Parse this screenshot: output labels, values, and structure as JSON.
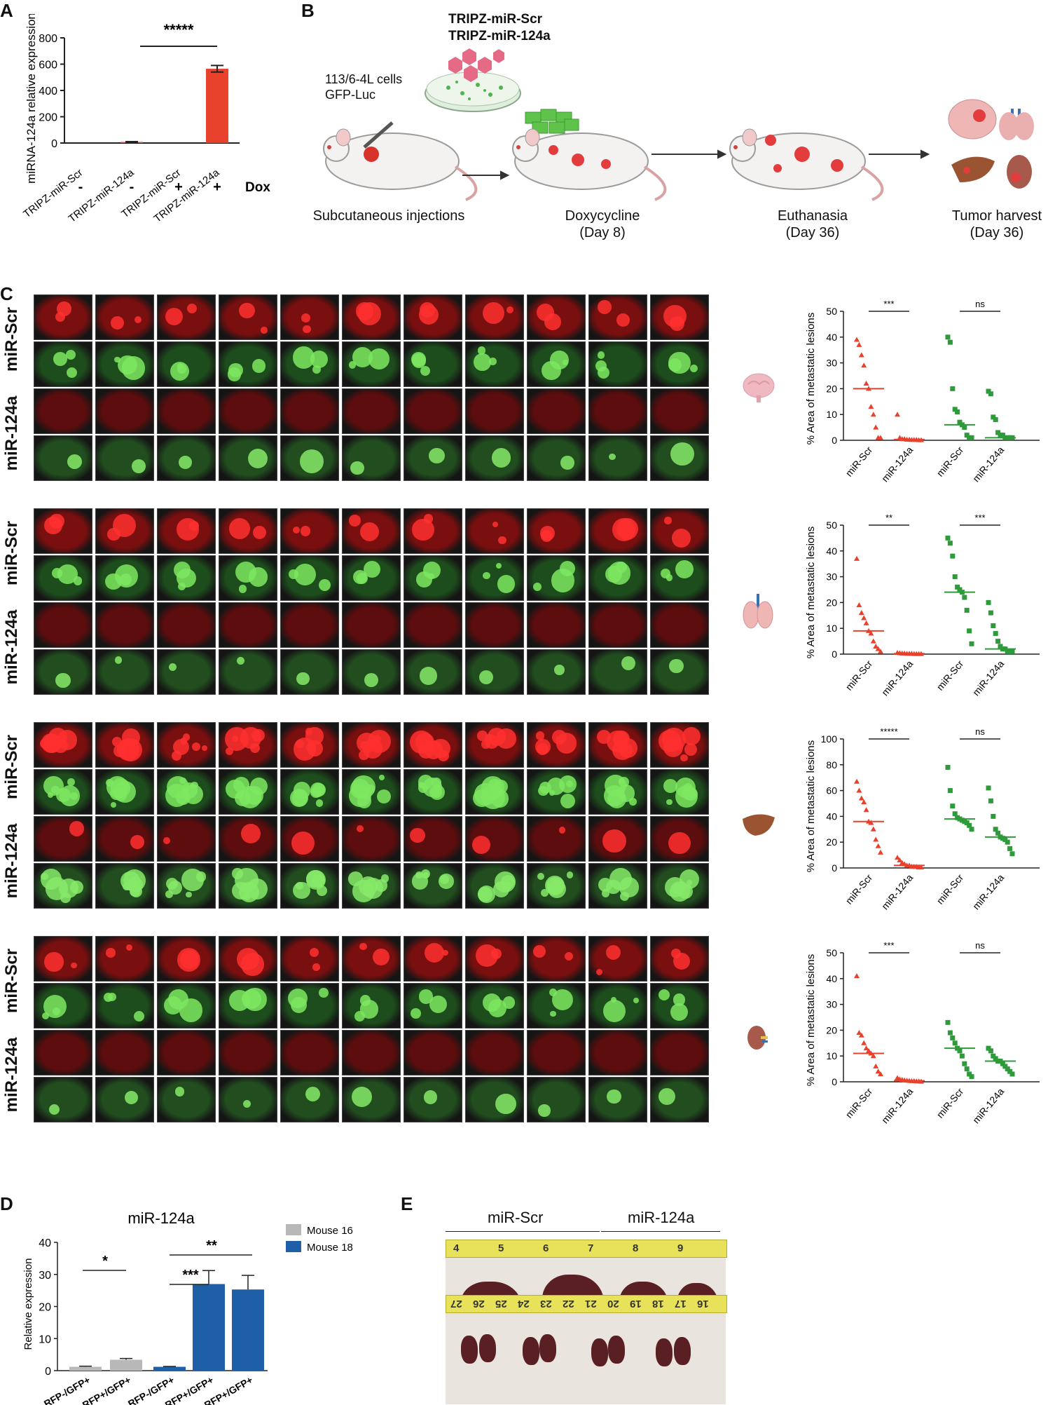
{
  "figure": {
    "panel_letters": [
      "A",
      "B",
      "C",
      "D",
      "E"
    ]
  },
  "panel_a": {
    "ylabel": "miRNA-124a relative expression",
    "significance": "*****",
    "dox_label": "Dox",
    "dox_values": [
      "-",
      "-",
      "+",
      "+"
    ],
    "colors": {
      "bar": "#e8412c"
    }
  },
  "panel_b": {
    "constructs": [
      "TRIPZ-miR-Scr",
      "TRIPZ-miR-124a"
    ],
    "cells": [
      "113/6-4L cells",
      "GFP-Luc"
    ],
    "steps": [
      {
        "label": "Subcutaneous injections",
        "sub": ""
      },
      {
        "label": "Doxycycline",
        "sub": "(Day 8)"
      },
      {
        "label": "Euthanasia",
        "sub": "(Day 36)"
      },
      {
        "label": "Tumor harvest",
        "sub": "(Day 36)"
      }
    ]
  },
  "panel_c": {
    "row_labels": [
      "miR-Scr",
      "miR-124a"
    ],
    "organs": [
      "brain-icon",
      "lung-icon",
      "liver-icon",
      "kidney-icon"
    ],
    "ylabel": "% Area of metastatic lesions",
    "x_categories": [
      "miR-Scr",
      "miR-124a",
      "miR-Scr",
      "miR-124a"
    ],
    "colors": {
      "red": "#e8412c",
      "green": "#2e9b3a"
    }
  },
  "panel_d": {
    "title": "miR-124a",
    "ylabel": "Relative expression",
    "legend": [
      "Mouse 16",
      "Mouse 18"
    ],
    "sig": [
      "*",
      "***",
      "**"
    ],
    "colors": {
      "mouse16": "#b8b8b8",
      "mouse18": "#1f5fa8"
    }
  },
  "panel_e": {
    "groups": [
      "miR-Scr",
      "miR-124a"
    ],
    "ruler_top_marks": [
      "4",
      "5",
      "6",
      "7",
      "8",
      "9"
    ],
    "ruler_bottom_marks": [
      "27",
      "26",
      "25",
      "24",
      "23",
      "22",
      "21",
      "20",
      "19",
      "18",
      "17",
      "16"
    ]
  },
  "chart_data": [
    {
      "type": "bar",
      "id": "A",
      "categories": [
        "TRIPZ-miR-Scr",
        "TRIPZ-miR-124a",
        "TRIPZ-miR-Scr",
        "TRIPZ-miR-124a"
      ],
      "values": [
        0,
        8,
        0,
        565
      ],
      "errors": [
        0,
        3,
        0,
        25
      ],
      "ylim": [
        0,
        800
      ],
      "yticks": [
        0,
        200,
        400,
        600,
        800
      ]
    },
    {
      "type": "scatter",
      "id": "C-brain",
      "ylim": [
        0,
        50
      ],
      "yticks": [
        0,
        10,
        20,
        30,
        40,
        50
      ],
      "significance": [
        "***",
        "ns"
      ],
      "groups": [
        {
          "values": [
            39,
            37,
            33,
            29,
            22,
            20,
            13,
            10,
            5,
            1,
            1
          ],
          "median": 20
        },
        {
          "values": [
            10,
            1,
            0.5,
            0.5,
            0.3,
            0.3,
            0.2,
            0.2,
            0.2,
            0.1,
            0.1
          ],
          "median": 0.3
        },
        {
          "values": [
            40,
            38,
            20,
            12,
            11,
            7,
            6,
            5,
            2,
            1,
            1
          ],
          "median": 6
        },
        {
          "values": [
            19,
            18,
            9,
            8,
            3,
            2,
            2,
            1,
            1,
            1,
            1
          ],
          "median": 1
        }
      ]
    },
    {
      "type": "scatter",
      "id": "C-lung",
      "ylim": [
        0,
        50
      ],
      "yticks": [
        0,
        10,
        20,
        30,
        40,
        50
      ],
      "significance": [
        "**",
        "***"
      ],
      "groups": [
        {
          "values": [
            37,
            19,
            16,
            14,
            12,
            9,
            8,
            5,
            3,
            2,
            1
          ],
          "median": 9
        },
        {
          "values": [
            0.5,
            0.4,
            0.3,
            0.3,
            0.2,
            0.2,
            0.2,
            0.1,
            0.1,
            0.1,
            0.1
          ],
          "median": 0.2
        },
        {
          "values": [
            45,
            43,
            38,
            30,
            26,
            25,
            24,
            22,
            17,
            9,
            4
          ],
          "median": 24
        },
        {
          "values": [
            20,
            16,
            11,
            8,
            5,
            3,
            2,
            2,
            1,
            1,
            1
          ],
          "median": 2
        }
      ]
    },
    {
      "type": "scatter",
      "id": "C-liver",
      "ylim": [
        0,
        100
      ],
      "yticks": [
        0,
        20,
        40,
        60,
        80,
        100
      ],
      "significance": [
        "*****",
        "ns"
      ],
      "groups": [
        {
          "values": [
            67,
            60,
            54,
            51,
            45,
            36,
            35,
            30,
            22,
            17,
            12
          ],
          "median": 36
        },
        {
          "values": [
            8,
            6,
            4,
            3,
            2,
            2,
            1,
            1,
            1,
            0.5,
            0.5
          ],
          "median": 2
        },
        {
          "values": [
            78,
            60,
            48,
            42,
            39,
            38,
            37,
            36,
            35,
            33,
            30
          ],
          "median": 38
        },
        {
          "values": [
            62,
            52,
            40,
            30,
            27,
            24,
            23,
            22,
            20,
            15,
            11
          ],
          "median": 24
        }
      ]
    },
    {
      "type": "scatter",
      "id": "C-kidney",
      "ylim": [
        0,
        50
      ],
      "yticks": [
        0,
        10,
        20,
        30,
        40,
        50
      ],
      "significance": [
        "***",
        "ns"
      ],
      "groups": [
        {
          "values": [
            41,
            19,
            18,
            15,
            13,
            12,
            11,
            10,
            6,
            4,
            3
          ],
          "median": 11
        },
        {
          "values": [
            1.5,
            1,
            0.8,
            0.6,
            0.5,
            0.4,
            0.3,
            0.3,
            0.2,
            0.2,
            0.1
          ],
          "median": 0.4
        },
        {
          "values": [
            23,
            19,
            17,
            15,
            13,
            12,
            10,
            7,
            5,
            3,
            2
          ],
          "median": 13
        },
        {
          "values": [
            13,
            12,
            10,
            9,
            8,
            8,
            7,
            6,
            5,
            4,
            3
          ],
          "median": 8
        }
      ]
    },
    {
      "type": "bar",
      "id": "D",
      "categories": [
        "RFP-/GFP+",
        "RFP+/GFP+",
        "RFP-/GFP+",
        "RFP+/GFP+",
        "RFP+/GFP+"
      ],
      "series": [
        {
          "name": "Mouse 16",
          "indices": [
            0,
            1
          ]
        },
        {
          "name": "Mouse 18",
          "indices": [
            2,
            3,
            4
          ]
        }
      ],
      "values": [
        1.2,
        3.4,
        1.2,
        27,
        25.3
      ],
      "errors": [
        0.2,
        0.4,
        0.1,
        4.2,
        4.4
      ],
      "ylim": [
        0,
        40
      ],
      "yticks": [
        0,
        10,
        20,
        30,
        40
      ]
    }
  ]
}
